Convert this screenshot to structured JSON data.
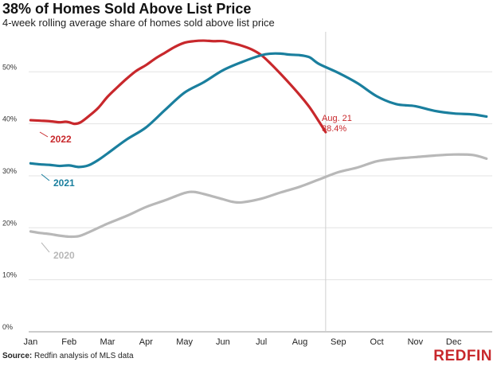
{
  "chart_data": {
    "type": "line",
    "title": "38% of Homes Sold Above List Price",
    "subtitle": "4-week rolling average share of homes sold above list price",
    "xlabel": "",
    "ylabel": "",
    "x_tick_labels": [
      "Jan",
      "Feb",
      "Mar",
      "Apr",
      "May",
      "Jun",
      "Jul",
      "Aug",
      "Sep",
      "Oct",
      "Nov",
      "Dec"
    ],
    "y_ticks": [
      0,
      10,
      20,
      30,
      40,
      50
    ],
    "y_tick_labels": [
      "0%",
      "10%",
      "20%",
      "30%",
      "40%",
      "50%"
    ],
    "ylim": [
      0,
      58
    ],
    "x_unit": "month (0 = start of Jan)",
    "xlim": [
      -0.05,
      12.0
    ],
    "grid": true,
    "vertical_marker": {
      "x": 7.67
    },
    "annotation": {
      "lines": [
        "Aug. 21",
        "38.4%"
      ],
      "color": "#c8282c"
    },
    "series": [
      {
        "name": "2022",
        "color": "#c8282c",
        "x": [
          0.0,
          0.25,
          0.5,
          0.75,
          0.9,
          1.0,
          1.15,
          1.3,
          1.5,
          1.75,
          2.0,
          2.25,
          2.5,
          2.75,
          3.0,
          3.25,
          3.5,
          3.75,
          4.0,
          4.25,
          4.5,
          4.75,
          5.0,
          5.25,
          5.5,
          5.75,
          6.0,
          6.25,
          6.5,
          6.75,
          7.0,
          7.25,
          7.5,
          7.67
        ],
        "values": [
          40.7,
          40.6,
          40.5,
          40.3,
          40.4,
          40.3,
          40.0,
          40.3,
          41.4,
          43.0,
          45.2,
          47.0,
          48.7,
          50.2,
          51.3,
          52.6,
          53.7,
          54.8,
          55.6,
          55.9,
          56.0,
          55.9,
          55.9,
          55.5,
          55.0,
          54.3,
          53.2,
          51.5,
          49.6,
          47.6,
          45.5,
          43.2,
          40.4,
          38.4
        ]
      },
      {
        "name": "2021",
        "color": "#1a7f9e",
        "x": [
          0.0,
          0.25,
          0.5,
          0.75,
          1.0,
          1.25,
          1.5,
          1.75,
          2.0,
          2.5,
          3.0,
          3.5,
          4.0,
          4.5,
          5.0,
          5.5,
          6.0,
          6.25,
          6.5,
          6.75,
          7.0,
          7.25,
          7.5,
          8.0,
          8.5,
          9.0,
          9.5,
          10.0,
          10.5,
          11.0,
          11.5,
          11.85
        ],
        "values": [
          32.4,
          32.2,
          32.1,
          31.9,
          32.0,
          31.7,
          32.0,
          33.0,
          34.3,
          37.0,
          39.3,
          42.7,
          46.0,
          48.0,
          50.3,
          51.9,
          53.2,
          53.5,
          53.5,
          53.3,
          53.2,
          52.8,
          51.5,
          49.8,
          47.8,
          45.3,
          43.8,
          43.4,
          42.5,
          42.0,
          41.8,
          41.4
        ]
      },
      {
        "name": "2020",
        "color": "#b8b8b8",
        "x": [
          0.0,
          0.25,
          0.5,
          0.75,
          1.0,
          1.25,
          1.5,
          2.0,
          2.5,
          3.0,
          3.5,
          4.0,
          4.25,
          4.5,
          5.0,
          5.25,
          5.5,
          6.0,
          6.5,
          7.0,
          7.5,
          8.0,
          8.5,
          9.0,
          9.5,
          10.0,
          10.5,
          11.0,
          11.5,
          11.85
        ],
        "values": [
          19.3,
          19.0,
          18.8,
          18.5,
          18.3,
          18.4,
          19.1,
          20.8,
          22.3,
          24.0,
          25.3,
          26.7,
          26.9,
          26.5,
          25.5,
          25.0,
          24.9,
          25.6,
          26.8,
          27.9,
          29.3,
          30.7,
          31.6,
          32.8,
          33.3,
          33.6,
          33.9,
          34.1,
          34.0,
          33.3
        ]
      }
    ]
  },
  "series_labels": [
    {
      "text": "2022",
      "color": "#c8282c"
    },
    {
      "text": "2021",
      "color": "#1a7f9e"
    },
    {
      "text": "2020",
      "color": "#b8b8b8"
    }
  ],
  "footer": {
    "source_label": "Source:",
    "source_text": " Redfin analysis of MLS data",
    "brand": "REDFIN"
  }
}
